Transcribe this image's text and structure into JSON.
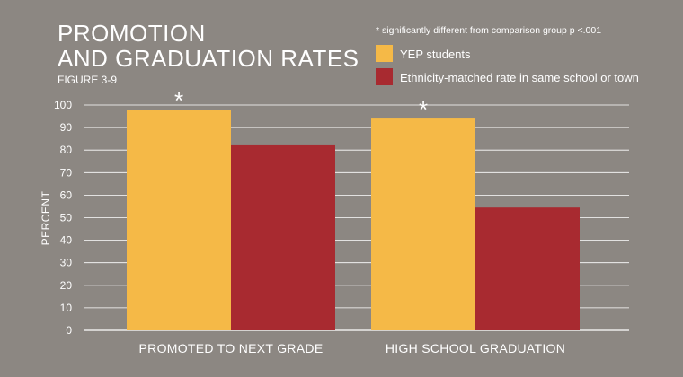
{
  "colors": {
    "background": "#8c8782",
    "grid": "#ffffff",
    "series_yep": "#f5b947",
    "series_matched": "#a82a30",
    "text": "#ffffff"
  },
  "heading": {
    "title_line1": "PROMOTION",
    "title_line2": "AND GRADUATION RATES",
    "figure_label": "FIGURE 3-9"
  },
  "legend": {
    "note": "* significantly different from comparison group p <.001",
    "items": [
      {
        "label": "YEP students",
        "color": "#f5b947"
      },
      {
        "label": "Ethnicity-matched rate in same school or town",
        "color": "#a82a30"
      }
    ]
  },
  "chart_data": {
    "type": "bar",
    "title": "PROMOTION AND GRADUATION RATES",
    "subtitle": "FIGURE 3-9",
    "categories": [
      "PROMOTED TO NEXT GRADE",
      "HIGH SCHOOL GRADUATION"
    ],
    "series": [
      {
        "name": "YEP students",
        "values": [
          98,
          94
        ],
        "color": "#f5b947"
      },
      {
        "name": "Ethnicity-matched rate in same school or town",
        "values": [
          82.5,
          54.5
        ],
        "color": "#a82a30"
      }
    ],
    "significance_marks": [
      "*",
      "*"
    ],
    "xlabel": "",
    "ylabel": "PERCENT",
    "ylim": [
      0,
      100
    ],
    "yticks": [
      0,
      10,
      20,
      30,
      40,
      50,
      60,
      70,
      80,
      90,
      100
    ],
    "grid": true,
    "legend_position": "top-right"
  }
}
